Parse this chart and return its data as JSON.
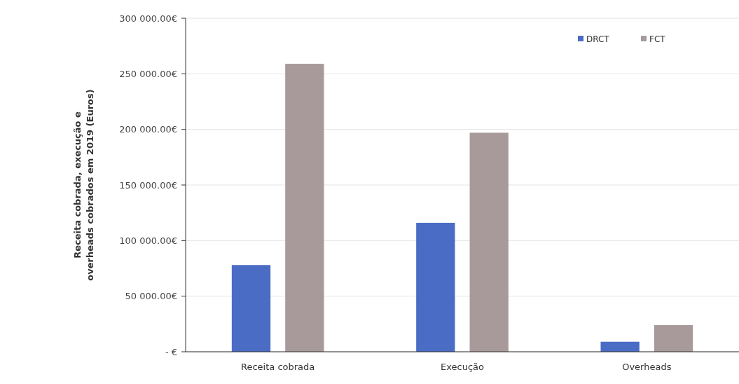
{
  "chart_data": {
    "type": "bar",
    "ylabel": "Receita cobrada, execução e overheads cobrados em 2019 (Euros)",
    "categories": [
      "Receita cobrada",
      "Execução",
      "Overheads"
    ],
    "series": [
      {
        "name": "DRCT",
        "color": "#4a6cc4",
        "values": [
          78000,
          116000,
          9000
        ]
      },
      {
        "name": "FCT",
        "color": "#a89a9a",
        "values": [
          259000,
          197000,
          24000
        ]
      }
    ],
    "ylim": [
      0,
      300000
    ],
    "yticks": [
      {
        "value": 0,
        "label": "- €"
      },
      {
        "value": 50000,
        "label": "50 000.00€"
      },
      {
        "value": 100000,
        "label": "100 000.00€"
      },
      {
        "value": 150000,
        "label": "150 000.00€"
      },
      {
        "value": 200000,
        "label": "200 000.00€"
      },
      {
        "value": 250000,
        "label": "250 000.00€"
      },
      {
        "value": 300000,
        "label": "300 000.00€"
      }
    ],
    "grid": "y",
    "legend": "top right"
  }
}
